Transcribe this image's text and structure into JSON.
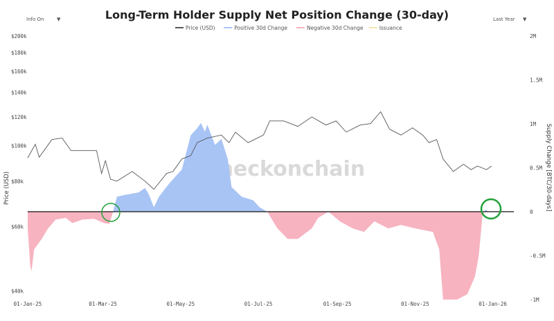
{
  "controls": {
    "info_toggle": "Info On",
    "range_select": "Last Year",
    "dropdown_glyph": "▼"
  },
  "watermark": "_checkonchain",
  "colors": {
    "price": "#555555",
    "positive": "#a8c4f5",
    "negative": "#f7b3c0",
    "issuance": "#f3e6b0",
    "highlight_circle": "#22a03a",
    "zero_line": "#111111"
  },
  "chart_data": {
    "type": "area",
    "title": "Long-Term Holder Supply Net Position Change (30-day)",
    "legend": [
      "Price (USD)",
      "Positive 30d Change",
      "Negative 30d Change",
      "Issuance"
    ],
    "legend_placement": "top-center",
    "xlabel": "",
    "ylabel_left": "Price (USD)",
    "ylabel_right": "Supply Change [BTC/30-days]",
    "x_ticks": [
      "01-Jan-25",
      "01-Mar-25",
      "01-May-25",
      "01-Jul-25",
      "01-Sep-25",
      "01-Nov-25",
      "01-Jan-26"
    ],
    "x_tick_dates": [
      "2025-01-01",
      "2025-03-01",
      "2025-05-01",
      "2025-07-01",
      "2025-09-01",
      "2025-11-01",
      "2026-01-01"
    ],
    "y_left_scale": "log",
    "y_left_ticks": [
      "$200k",
      "$180k",
      "$160k",
      "$140k",
      "$120k",
      "$100k",
      "$80k",
      "$60k",
      "$40k"
    ],
    "y_left_tick_values": [
      200,
      180,
      160,
      140,
      120,
      100,
      80,
      60,
      40
    ],
    "y_left_unit": "thousand USD",
    "ylim_left": [
      40,
      200
    ],
    "y_right_ticks": [
      "2M",
      "1.5M",
      "1M",
      "0.5M",
      "0",
      "-0.5M",
      "-1M"
    ],
    "y_right_tick_values": [
      2,
      1.5,
      1,
      0.5,
      0,
      -0.5,
      -1
    ],
    "y_right_unit": "million BTC",
    "ylim_right": [
      -1,
      2
    ],
    "grid": false,
    "series": [
      {
        "name": "Price (USD)",
        "type": "line",
        "points": [
          [
            "2025-01-01",
            92.7
          ],
          [
            "2025-01-07",
            101
          ],
          [
            "2025-01-10",
            93
          ],
          [
            "2025-01-20",
            104
          ],
          [
            "2025-01-28",
            105
          ],
          [
            "2025-02-04",
            97
          ],
          [
            "2025-02-11",
            97
          ],
          [
            "2025-02-24",
            97
          ],
          [
            "2025-02-28",
            84
          ],
          [
            "2025-03-03",
            91
          ],
          [
            "2025-03-07",
            81
          ],
          [
            "2025-03-12",
            80
          ],
          [
            "2025-03-24",
            85
          ],
          [
            "2025-04-03",
            80
          ],
          [
            "2025-04-10",
            76
          ],
          [
            "2025-04-20",
            84
          ],
          [
            "2025-04-25",
            85
          ],
          [
            "2025-05-02",
            92
          ],
          [
            "2025-05-09",
            94
          ],
          [
            "2025-05-14",
            102
          ],
          [
            "2025-05-22",
            105
          ],
          [
            "2025-06-02",
            107
          ],
          [
            "2025-06-08",
            102
          ],
          [
            "2025-06-13",
            109
          ],
          [
            "2025-06-23",
            102
          ],
          [
            "2025-07-05",
            107
          ],
          [
            "2025-07-10",
            117
          ],
          [
            "2025-07-21",
            117
          ],
          [
            "2025-08-01",
            113
          ],
          [
            "2025-08-12",
            120
          ],
          [
            "2025-08-23",
            114
          ],
          [
            "2025-08-31",
            117
          ],
          [
            "2025-09-08",
            109
          ],
          [
            "2025-09-19",
            114
          ],
          [
            "2025-09-27",
            115
          ],
          [
            "2025-10-05",
            124
          ],
          [
            "2025-10-12",
            111
          ],
          [
            "2025-10-21",
            107
          ],
          [
            "2025-10-30",
            112
          ],
          [
            "2025-11-07",
            107
          ],
          [
            "2025-11-12",
            102
          ],
          [
            "2025-11-18",
            104
          ],
          [
            "2025-11-23",
            92
          ],
          [
            "2025-12-01",
            85
          ],
          [
            "2025-12-09",
            89
          ],
          [
            "2025-12-15",
            86
          ],
          [
            "2025-12-20",
            88
          ],
          [
            "2025-12-27",
            86
          ],
          [
            "2025-12-31",
            88
          ]
        ]
      },
      {
        "name": "Supply Change",
        "type": "area",
        "points": [
          [
            "2025-01-01",
            -0.19
          ],
          [
            "2025-01-03",
            -0.62
          ],
          [
            "2025-01-04",
            -0.68
          ],
          [
            "2025-01-06",
            -0.43
          ],
          [
            "2025-01-12",
            -0.31
          ],
          [
            "2025-01-17",
            -0.19
          ],
          [
            "2025-01-23",
            -0.09
          ],
          [
            "2025-01-31",
            -0.07
          ],
          [
            "2025-02-05",
            -0.13
          ],
          [
            "2025-02-13",
            -0.09
          ],
          [
            "2025-02-22",
            -0.08
          ],
          [
            "2025-03-02",
            -0.13
          ],
          [
            "2025-03-06",
            -0.14
          ],
          [
            "2025-03-09",
            0
          ],
          [
            "2025-03-12",
            0.17
          ],
          [
            "2025-03-18",
            0.19
          ],
          [
            "2025-03-29",
            0.22
          ],
          [
            "2025-04-03",
            0.27
          ],
          [
            "2025-04-06",
            0.2
          ],
          [
            "2025-04-10",
            0.05
          ],
          [
            "2025-04-14",
            0.17
          ],
          [
            "2025-04-22",
            0.32
          ],
          [
            "2025-05-02",
            0.48
          ],
          [
            "2025-05-09",
            0.87
          ],
          [
            "2025-05-14",
            0.95
          ],
          [
            "2025-05-17",
            1.01
          ],
          [
            "2025-05-20",
            0.91
          ],
          [
            "2025-05-22",
            0.99
          ],
          [
            "2025-05-28",
            0.76
          ],
          [
            "2025-06-02",
            0.83
          ],
          [
            "2025-06-07",
            0.6
          ],
          [
            "2025-06-10",
            0.28
          ],
          [
            "2025-06-18",
            0.17
          ],
          [
            "2025-06-27",
            0.13
          ],
          [
            "2025-07-02",
            0.05
          ],
          [
            "2025-07-08",
            0
          ],
          [
            "2025-07-16",
            -0.19
          ],
          [
            "2025-07-24",
            -0.31
          ],
          [
            "2025-08-01",
            -0.31
          ],
          [
            "2025-08-12",
            -0.19
          ],
          [
            "2025-08-17",
            -0.07
          ],
          [
            "2025-08-25",
            0
          ],
          [
            "2025-09-03",
            -0.11
          ],
          [
            "2025-09-13",
            -0.19
          ],
          [
            "2025-09-22",
            -0.23
          ],
          [
            "2025-09-30",
            -0.11
          ],
          [
            "2025-10-11",
            -0.19
          ],
          [
            "2025-10-21",
            -0.15
          ],
          [
            "2025-11-01",
            -0.19
          ],
          [
            "2025-11-15",
            -0.23
          ],
          [
            "2025-11-20",
            -0.43
          ],
          [
            "2025-11-23",
            -1.0
          ],
          [
            "2025-12-04",
            -1.0
          ],
          [
            "2025-12-12",
            -0.94
          ],
          [
            "2025-12-18",
            -0.74
          ],
          [
            "2025-12-21",
            -0.5
          ],
          [
            "2025-12-24",
            -0.03
          ],
          [
            "2025-12-26",
            0.02
          ],
          [
            "2025-12-28",
            0.01
          ]
        ]
      }
    ]
  }
}
